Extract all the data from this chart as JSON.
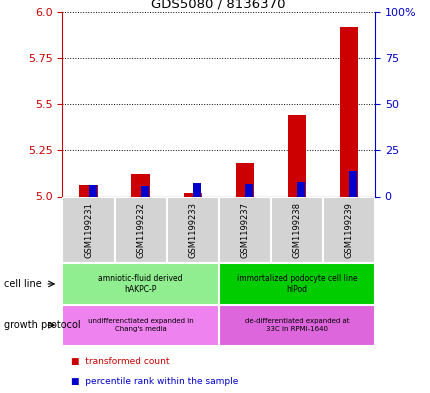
{
  "title": "GDS5080 / 8136370",
  "samples": [
    "GSM1199231",
    "GSM1199232",
    "GSM1199233",
    "GSM1199237",
    "GSM1199238",
    "GSM1199239"
  ],
  "red_values": [
    5.06,
    5.12,
    5.02,
    5.18,
    5.44,
    5.92
  ],
  "blue_values": [
    6.0,
    5.5,
    7.5,
    6.5,
    8.0,
    14.0
  ],
  "ylim_left": [
    5.0,
    6.0
  ],
  "ylim_right": [
    0,
    100
  ],
  "yticks_left": [
    5.0,
    5.25,
    5.5,
    5.75,
    6.0
  ],
  "yticks_right": [
    0,
    25,
    50,
    75,
    100
  ],
  "left_color": "#cc0000",
  "right_color": "#0000cc",
  "red_bar_width": 0.35,
  "blue_bar_width": 0.15,
  "cell_line_groups": [
    {
      "label": "amniotic-fluid derived\nhAKPC-P",
      "start": 0,
      "end": 3,
      "color": "#90ee90"
    },
    {
      "label": "immortalized podocyte cell line\nhIPod",
      "start": 3,
      "end": 6,
      "color": "#00cc00"
    }
  ],
  "growth_protocol_groups": [
    {
      "label": "undifferenctiated expanded in\nChang's media",
      "start": 0,
      "end": 3,
      "color": "#ee82ee"
    },
    {
      "label": "de-differentiated expanded at\n33C in RPMI-1640",
      "start": 3,
      "end": 6,
      "color": "#dd66dd"
    }
  ],
  "legend_items": [
    {
      "color": "#cc0000",
      "label": "transformed count"
    },
    {
      "color": "#0000cc",
      "label": "percentile rank within the sample"
    }
  ]
}
